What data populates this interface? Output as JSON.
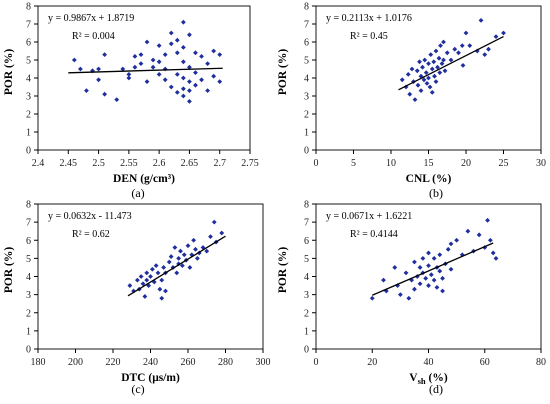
{
  "chart_data": [
    {
      "type": "scatter",
      "title": "",
      "sublabel": "(a)",
      "xlabel": "DEN (g/cm³)",
      "ylabel": "POR (%)",
      "xlim": [
        2.4,
        2.75
      ],
      "ylim": [
        0,
        8
      ],
      "xticks": [
        "2.4",
        "2.45",
        "2.5",
        "2.55",
        "2.6",
        "2.65",
        "2.7",
        "2.75"
      ],
      "yticks": [
        "0",
        "1",
        "2",
        "3",
        "4",
        "5",
        "6",
        "7",
        "8"
      ],
      "equation": "y = 0.9867x + 1.8719",
      "r2": "R² = 0.004",
      "fit": {
        "slope": 0.9867,
        "intercept": 1.8719,
        "x_range": [
          2.45,
          2.705
        ]
      },
      "points": [
        [
          2.46,
          5.0
        ],
        [
          2.47,
          4.5
        ],
        [
          2.48,
          3.3
        ],
        [
          2.49,
          4.4
        ],
        [
          2.5,
          4.5
        ],
        [
          2.5,
          3.9
        ],
        [
          2.51,
          5.3
        ],
        [
          2.51,
          3.1
        ],
        [
          2.53,
          2.8
        ],
        [
          2.54,
          4.5
        ],
        [
          2.55,
          4.2
        ],
        [
          2.55,
          4.0
        ],
        [
          2.56,
          5.2
        ],
        [
          2.56,
          4.6
        ],
        [
          2.57,
          5.3
        ],
        [
          2.57,
          4.8
        ],
        [
          2.58,
          6.0
        ],
        [
          2.58,
          3.8
        ],
        [
          2.59,
          5.0
        ],
        [
          2.59,
          4.6
        ],
        [
          2.6,
          5.8
        ],
        [
          2.6,
          4.9
        ],
        [
          2.6,
          4.2
        ],
        [
          2.61,
          5.3
        ],
        [
          2.61,
          4.5
        ],
        [
          2.61,
          3.9
        ],
        [
          2.62,
          6.5
        ],
        [
          2.62,
          5.9
        ],
        [
          2.62,
          3.5
        ],
        [
          2.63,
          6.1
        ],
        [
          2.63,
          5.4
        ],
        [
          2.63,
          4.2
        ],
        [
          2.63,
          3.2
        ],
        [
          2.64,
          7.1
        ],
        [
          2.64,
          5.7
        ],
        [
          2.64,
          4.9
        ],
        [
          2.64,
          4.0
        ],
        [
          2.64,
          3.4
        ],
        [
          2.64,
          3.0
        ],
        [
          2.65,
          6.4
        ],
        [
          2.65,
          4.6
        ],
        [
          2.65,
          3.8
        ],
        [
          2.65,
          3.3
        ],
        [
          2.65,
          2.7
        ],
        [
          2.66,
          5.4
        ],
        [
          2.66,
          4.3
        ],
        [
          2.66,
          3.6
        ],
        [
          2.67,
          5.2
        ],
        [
          2.67,
          3.9
        ],
        [
          2.68,
          4.8
        ],
        [
          2.68,
          3.3
        ],
        [
          2.69,
          5.5
        ],
        [
          2.69,
          4.1
        ],
        [
          2.7,
          5.3
        ],
        [
          2.7,
          3.8
        ]
      ]
    },
    {
      "type": "scatter",
      "title": "",
      "sublabel": "(b)",
      "xlabel": "CNL (%)",
      "ylabel": "POR (%)",
      "xlim": [
        0,
        30
      ],
      "ylim": [
        0,
        8
      ],
      "xticks": [
        "0",
        "5",
        "10",
        "15",
        "20",
        "25",
        "30"
      ],
      "yticks": [
        "0",
        "1",
        "2",
        "3",
        "4",
        "5",
        "6",
        "7",
        "8"
      ],
      "equation": "y = 0.2113x + 1.0176",
      "r2": "R² = 0.45",
      "fit": {
        "slope": 0.2113,
        "intercept": 1.0176,
        "x_range": [
          11,
          25
        ]
      },
      "points": [
        [
          11.5,
          3.9
        ],
        [
          12,
          3.5
        ],
        [
          12.3,
          4.2
        ],
        [
          12.5,
          3.1
        ],
        [
          12.8,
          4.5
        ],
        [
          13,
          3.8
        ],
        [
          13.2,
          2.8
        ],
        [
          13.5,
          4.4
        ],
        [
          13.6,
          3.6
        ],
        [
          13.8,
          4.9
        ],
        [
          14,
          4.1
        ],
        [
          14,
          3.3
        ],
        [
          14.2,
          4.6
        ],
        [
          14.4,
          3.9
        ],
        [
          14.5,
          5.0
        ],
        [
          14.7,
          4.3
        ],
        [
          14.8,
          3.7
        ],
        [
          15,
          4.8
        ],
        [
          15,
          4.0
        ],
        [
          15.2,
          3.5
        ],
        [
          15.3,
          5.3
        ],
        [
          15.5,
          4.5
        ],
        [
          15.5,
          3.2
        ],
        [
          15.7,
          4.9
        ],
        [
          15.8,
          4.1
        ],
        [
          16,
          5.5
        ],
        [
          16,
          3.8
        ],
        [
          16.2,
          4.6
        ],
        [
          16.4,
          5.1
        ],
        [
          16.5,
          4.3
        ],
        [
          16.6,
          5.8
        ],
        [
          16.8,
          4.8
        ],
        [
          17,
          6.0
        ],
        [
          17,
          5.0
        ],
        [
          17.2,
          4.4
        ],
        [
          17.5,
          5.4
        ],
        [
          18,
          5.0
        ],
        [
          18.5,
          5.6
        ],
        [
          19,
          5.4
        ],
        [
          19.5,
          5.8
        ],
        [
          19.6,
          4.7
        ],
        [
          20,
          6.5
        ],
        [
          20.5,
          5.8
        ],
        [
          21.5,
          5.5
        ],
        [
          22,
          7.2
        ],
        [
          22.5,
          5.3
        ],
        [
          23,
          5.6
        ],
        [
          24,
          6.3
        ],
        [
          25,
          6.5
        ]
      ]
    },
    {
      "type": "scatter",
      "title": "",
      "sublabel": "(c)",
      "xlabel": "DTC (μs/m)",
      "ylabel": "POR (%)",
      "xlim": [
        180,
        300
      ],
      "ylim": [
        0,
        8
      ],
      "xticks": [
        "180",
        "200",
        "220",
        "240",
        "260",
        "280",
        "300"
      ],
      "yticks": [
        "0",
        "1",
        "2",
        "3",
        "4",
        "5",
        "6",
        "7",
        "8"
      ],
      "equation": "y = 0.0632x - 11.473",
      "r2": "R² = 0.62",
      "fit": {
        "slope": 0.0632,
        "intercept": -11.473,
        "x_range": [
          228,
          280
        ]
      },
      "points": [
        [
          229,
          3.5
        ],
        [
          231,
          3.2
        ],
        [
          233,
          3.8
        ],
        [
          234,
          3.3
        ],
        [
          235,
          4.0
        ],
        [
          236,
          3.6
        ],
        [
          237,
          2.9
        ],
        [
          238,
          4.2
        ],
        [
          238,
          3.8
        ],
        [
          239,
          3.5
        ],
        [
          240,
          4.0
        ],
        [
          241,
          4.4
        ],
        [
          242,
          3.7
        ],
        [
          243,
          4.6
        ],
        [
          244,
          4.2
        ],
        [
          245,
          3.3
        ],
        [
          246,
          3.8
        ],
        [
          246,
          2.8
        ],
        [
          247,
          4.5
        ],
        [
          248,
          3.2
        ],
        [
          248,
          4.2
        ],
        [
          250,
          4.8
        ],
        [
          251,
          5.1
        ],
        [
          252,
          4.5
        ],
        [
          253,
          5.6
        ],
        [
          254,
          4.2
        ],
        [
          255,
          5.0
        ],
        [
          255,
          4.7
        ],
        [
          256,
          5.4
        ],
        [
          257,
          4.6
        ],
        [
          258,
          5.2
        ],
        [
          259,
          4.9
        ],
        [
          260,
          5.7
        ],
        [
          261,
          4.5
        ],
        [
          262,
          5.2
        ],
        [
          263,
          6.0
        ],
        [
          264,
          5.5
        ],
        [
          265,
          5.0
        ],
        [
          266,
          5.3
        ],
        [
          268,
          5.6
        ],
        [
          270,
          5.4
        ],
        [
          272,
          6.2
        ],
        [
          274,
          7.0
        ],
        [
          275,
          5.9
        ],
        [
          278,
          6.4
        ]
      ]
    },
    {
      "type": "scatter",
      "title": "",
      "sublabel": "(d)",
      "xlabel": "V",
      "xlabel_sub": "sh",
      "xlabel_tail": " (%)",
      "ylabel": "POR (%)",
      "xlim": [
        0,
        80
      ],
      "ylim": [
        0,
        8
      ],
      "xticks": [
        "0",
        "20",
        "40",
        "60",
        "80"
      ],
      "yticks": [
        "0",
        "1",
        "2",
        "3",
        "4",
        "5",
        "6",
        "7",
        "8"
      ],
      "equation": "y = 0.0671x + 1.6221",
      "r2": "R² = 0.4144",
      "fit": {
        "slope": 0.0671,
        "intercept": 1.6221,
        "x_range": [
          20,
          63
        ]
      },
      "points": [
        [
          20,
          2.8
        ],
        [
          24,
          3.8
        ],
        [
          25,
          3.2
        ],
        [
          28,
          4.5
        ],
        [
          29,
          3.5
        ],
        [
          30,
          3.0
        ],
        [
          32,
          4.2
        ],
        [
          33,
          2.8
        ],
        [
          34,
          3.8
        ],
        [
          35,
          4.8
        ],
        [
          35,
          3.3
        ],
        [
          36,
          4.0
        ],
        [
          37,
          4.5
        ],
        [
          37,
          3.6
        ],
        [
          38,
          5.0
        ],
        [
          38,
          4.2
        ],
        [
          39,
          3.9
        ],
        [
          40,
          5.3
        ],
        [
          40,
          4.6
        ],
        [
          40,
          3.5
        ],
        [
          41,
          4.1
        ],
        [
          42,
          5.0
        ],
        [
          42,
          3.8
        ],
        [
          43,
          4.5
        ],
        [
          43,
          3.4
        ],
        [
          44,
          5.2
        ],
        [
          44,
          4.3
        ],
        [
          45,
          3.9
        ],
        [
          45,
          3.2
        ],
        [
          46,
          4.7
        ],
        [
          47,
          5.5
        ],
        [
          48,
          5.8
        ],
        [
          48,
          4.4
        ],
        [
          50,
          6.0
        ],
        [
          52,
          5.2
        ],
        [
          54,
          6.5
        ],
        [
          56,
          5.4
        ],
        [
          58,
          6.3
        ],
        [
          60,
          5.6
        ],
        [
          61,
          7.1
        ],
        [
          62,
          6.0
        ],
        [
          63,
          5.3
        ],
        [
          64,
          5.0
        ]
      ]
    }
  ]
}
